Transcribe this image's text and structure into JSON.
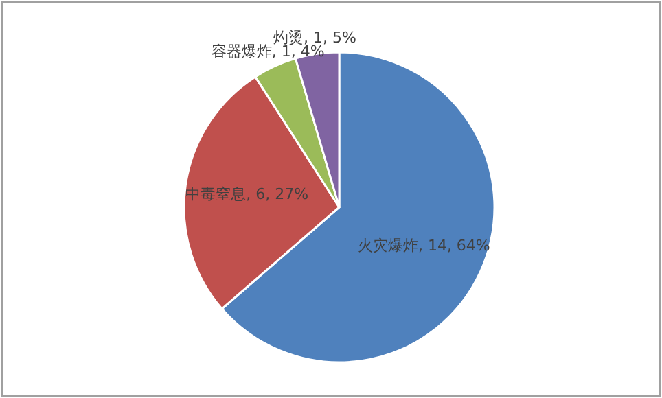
{
  "chart_data": {
    "type": "pie",
    "categories": [
      "火灾爆炸",
      "中毒窒息",
      "容器爆炸",
      "灼烫"
    ],
    "values": [
      14,
      6,
      1,
      1
    ],
    "colors": [
      "#4f81bd",
      "#c0504d",
      "#9bbb59",
      "#8064a2"
    ],
    "value_labels": [
      "14, 64%",
      "6, 27%",
      "1, 4%",
      "1, 5%"
    ],
    "legend": false
  }
}
